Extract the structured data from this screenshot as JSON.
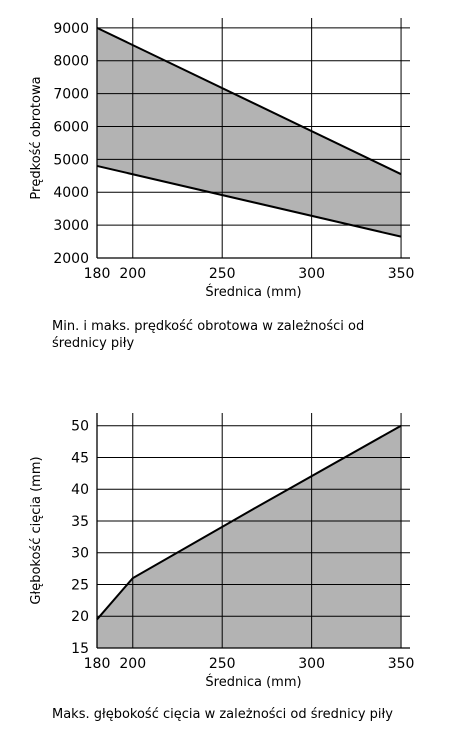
{
  "charts": {
    "speed": {
      "caption": "Min. i maks. prędkość obrotowa w zależności od średnicy piły"
    },
    "depth": {
      "caption": "Maks. głębokość cięcia w zależności od średnicy piły"
    }
  },
  "chart_data": [
    {
      "type": "area",
      "title": "",
      "xlabel": "Średnica (mm)",
      "ylabel": "Prędkość obrotowa",
      "xlim": [
        180,
        355
      ],
      "ylim": [
        2000,
        9300
      ],
      "x_ticks": [
        180,
        200,
        250,
        300,
        350
      ],
      "y_ticks": [
        2000,
        3000,
        4000,
        5000,
        6000,
        7000,
        8000,
        9000
      ],
      "grid": true,
      "fill_color": "#b3b3b3",
      "line_color": "#000000",
      "series": [
        {
          "name": "",
          "x": [
            180,
            350
          ],
          "values": [
            9000,
            4550
          ]
        },
        {
          "name": "",
          "x": [
            180,
            350
          ],
          "values": [
            4800,
            2650
          ]
        }
      ]
    },
    {
      "type": "area",
      "title": "",
      "xlabel": "Średnica (mm)",
      "ylabel": "Głębokość cięcia (mm)",
      "xlim": [
        180,
        355
      ],
      "ylim": [
        15,
        52
      ],
      "x_ticks": [
        180,
        200,
        250,
        300,
        350
      ],
      "y_ticks": [
        15,
        20,
        25,
        30,
        35,
        40,
        45,
        50
      ],
      "grid": true,
      "fill_color": "#b3b3b3",
      "line_color": "#000000",
      "series": [
        {
          "name": "",
          "x": [
            180,
            200,
            265,
            350
          ],
          "values": [
            19.5,
            26,
            36.5,
            50
          ]
        }
      ]
    }
  ]
}
